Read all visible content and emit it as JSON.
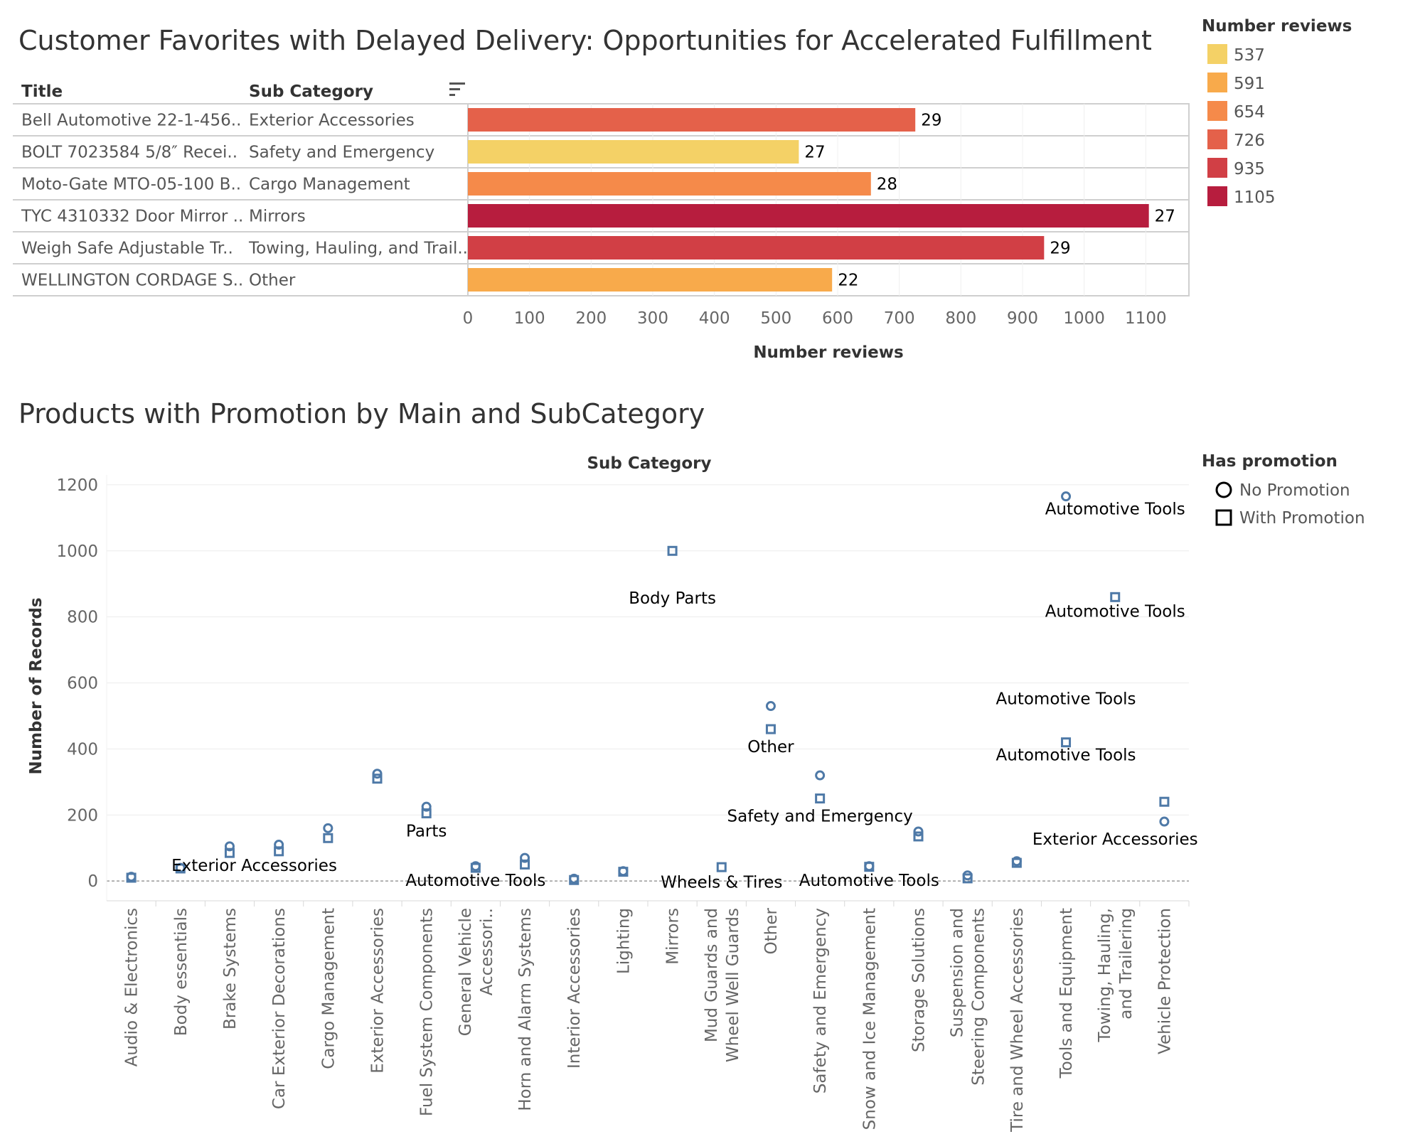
{
  "colors": {
    "537": "#f4d166",
    "591": "#f8aa4b",
    "654": "#f58a4a",
    "726": "#e4614a",
    "935": "#d13f45",
    "1105": "#b71d3e",
    "mark": "#4e79a7"
  },
  "chart_data": [
    {
      "type": "bar",
      "title": "Customer Favorites with Delayed Delivery: Opportunities for Accelerated Fulfillment",
      "columns": [
        "Title",
        "Sub Category"
      ],
      "sort_icon": "sort-descending-icon",
      "rows": [
        {
          "title": "Bell Automotive 22-1-456..",
          "sub_category": "Exterior Accessories",
          "value": 726,
          "label": "29"
        },
        {
          "title": "BOLT 7023584 5/8″ Recei..",
          "sub_category": "Safety and Emergency",
          "value": 537,
          "label": "27"
        },
        {
          "title": "Moto-Gate MTO-05-100 B..",
          "sub_category": "Cargo Management",
          "value": 654,
          "label": "28"
        },
        {
          "title": "TYC 4310332 Door Mirror ..",
          "sub_category": "Mirrors",
          "value": 1105,
          "label": "27"
        },
        {
          "title": "Weigh Safe Adjustable Tr..",
          "sub_category": "Towing, Hauling, and Trail..",
          "value": 935,
          "label": "29"
        },
        {
          "title": "WELLINGTON CORDAGE S..",
          "sub_category": "Other",
          "value": 591,
          "label": "22"
        }
      ],
      "xlabel": "Number reviews",
      "xlim": [
        0,
        1170
      ],
      "xticks": [
        0,
        100,
        200,
        300,
        400,
        500,
        600,
        700,
        800,
        900,
        1000,
        1100
      ],
      "legend": {
        "title": "Number reviews",
        "position": "top-right",
        "items": [
          "537",
          "591",
          "654",
          "726",
          "935",
          "1105"
        ]
      }
    },
    {
      "type": "scatter",
      "title": "Products with Promotion by Main and SubCategory",
      "column_header": "Sub Category",
      "ylabel": "Number of Records",
      "ylim": [
        -60,
        1230
      ],
      "yticks": [
        0,
        200,
        400,
        600,
        800,
        1000,
        1200
      ],
      "categories": [
        "Audio & Electronics",
        "Body essentials",
        "Brake Systems",
        "Car Exterior Decorations",
        "Cargo Management",
        "Exterior Accessories",
        "Fuel System Components",
        "General Vehicle Accessori..",
        "Horn and Alarm Systems",
        "Interior Accessories",
        "Lighting",
        "Mirrors",
        "Mud Guards and Wheel Well Guards",
        "Other",
        "Safety and Emergency",
        "Snow and Ice Management",
        "Storage Solutions",
        "Suspension and Steering Components",
        "Tire and Wheel Accessories",
        "Tools and Equipment",
        "Towing, Hauling, and Trailering",
        "Vehicle Protection"
      ],
      "series": [
        {
          "name": "No Promotion",
          "shape": "circle",
          "values": [
            13,
            40,
            105,
            110,
            160,
            325,
            225,
            45,
            70,
            7,
            30,
            null,
            null,
            530,
            320,
            45,
            150,
            17,
            60,
            1165,
            null,
            180
          ]
        },
        {
          "name": "With Promotion",
          "shape": "square",
          "values": [
            10,
            38,
            85,
            90,
            130,
            310,
            205,
            40,
            50,
            3,
            28,
            1000,
            42,
            460,
            250,
            43,
            135,
            8,
            55,
            420,
            860,
            240
          ]
        }
      ],
      "annotations": [
        {
          "text": "Exterior Accessories",
          "x": 2.5,
          "y": 30
        },
        {
          "text": "Parts",
          "x": 6,
          "y": 135
        },
        {
          "text": "Automotive Tools",
          "x": 7,
          "y": -15
        },
        {
          "text": "Body Parts",
          "x": 11,
          "y": 840
        },
        {
          "text": "Wheels & Tires",
          "x": 12,
          "y": -20
        },
        {
          "text": "Other",
          "x": 13,
          "y": 390
        },
        {
          "text": "Safety and Emergency",
          "x": 14,
          "y": 180
        },
        {
          "text": "Automotive Tools",
          "x": 15,
          "y": -15
        },
        {
          "text": "Exterior Accessories",
          "x": 20,
          "y": 110
        },
        {
          "text": "Automotive Tools",
          "x": 19,
          "y": 365
        },
        {
          "text": "Automotive Tools",
          "x": 19,
          "y": 535
        },
        {
          "text": "Automotive Tools",
          "x": 20,
          "y": 800
        },
        {
          "text": "Automotive Tools",
          "x": 20,
          "y": 1110
        }
      ],
      "legend": {
        "title": "Has promotion",
        "position": "top-right",
        "items": [
          {
            "label": "No Promotion",
            "shape": "circle"
          },
          {
            "label": "With Promotion",
            "shape": "square"
          }
        ]
      }
    }
  ]
}
